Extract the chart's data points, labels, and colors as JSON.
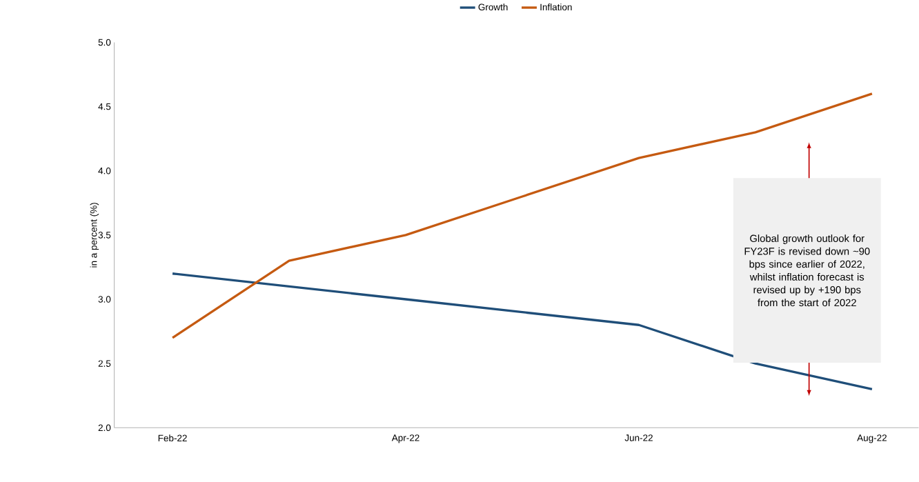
{
  "chart_data": {
    "type": "line",
    "ylabel": "in a percent (%)",
    "categories": [
      "Feb-22",
      null,
      "Apr-22",
      null,
      "Jun-22",
      null,
      "Aug-22"
    ],
    "series": [
      {
        "name": "Growth",
        "color": "#1f4e79",
        "values": [
          3.2,
          3.1,
          3.0,
          2.9,
          2.8,
          2.5,
          2.3
        ]
      },
      {
        "name": "Inflation",
        "color": "#c55a11",
        "values": [
          2.7,
          3.3,
          3.5,
          3.8,
          4.1,
          4.3,
          4.6
        ]
      }
    ],
    "ylim": [
      2,
      5
    ],
    "yticks": [
      {
        "value": 2,
        "label": "2.0"
      },
      {
        "value": 2.5,
        "label": "2.5"
      },
      {
        "value": 3,
        "label": "3.0"
      },
      {
        "value": 3.5,
        "label": "3.5"
      },
      {
        "value": 4,
        "label": "4.0"
      },
      {
        "value": 4.5,
        "label": "4.5"
      },
      {
        "value": 5,
        "label": "5.0"
      }
    ],
    "legend": "top",
    "grid": false,
    "annotations": [
      "Global growth outlook for FY23F is revised down ~90 bps since earlier of 2022, whilst inflation forecast is revised up by +190 bps from the start of 2022"
    ]
  }
}
